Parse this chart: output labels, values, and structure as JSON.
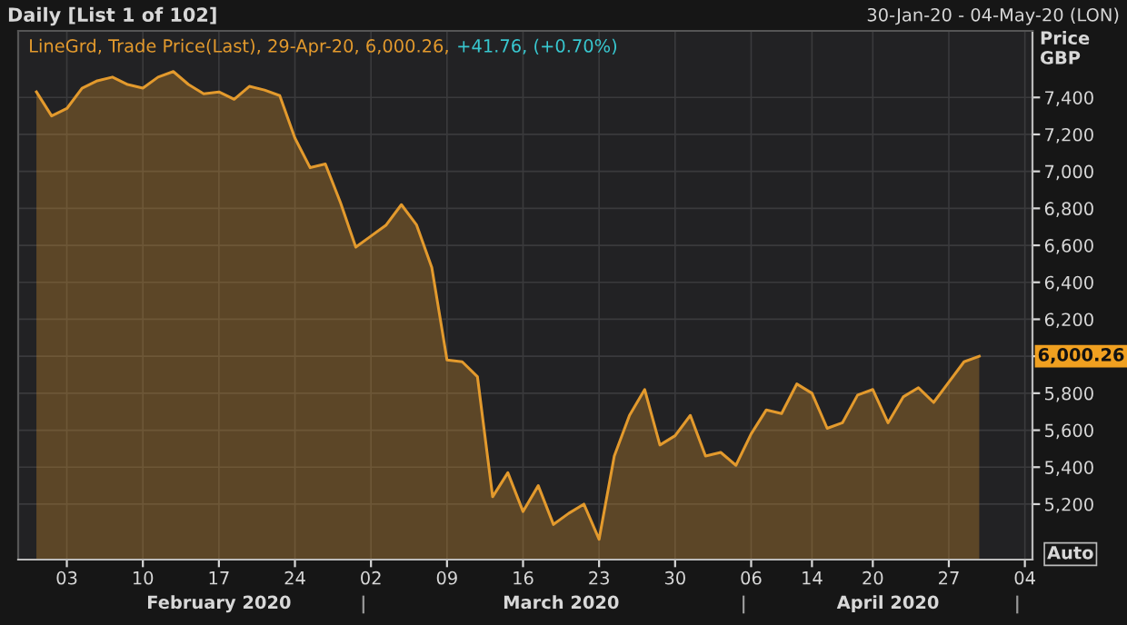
{
  "chart_data": {
    "type": "area",
    "title": "Daily [List 1 of 102]",
    "subtitle": "30-Jan-20 - 04-May-20 (LON)",
    "ylabel": "Price\nGBP",
    "categories": [
      null,
      null,
      "03",
      null,
      null,
      null,
      null,
      "10",
      null,
      null,
      null,
      null,
      "17",
      null,
      null,
      null,
      null,
      "24",
      null,
      null,
      null,
      null,
      "02",
      null,
      null,
      null,
      null,
      "09",
      null,
      null,
      null,
      null,
      "16",
      null,
      null,
      null,
      null,
      "23",
      null,
      null,
      null,
      null,
      "30",
      null,
      null,
      null,
      null,
      "06",
      null,
      null,
      null,
      "14",
      null,
      null,
      null,
      "20",
      null,
      null,
      null,
      null,
      "27",
      null,
      null,
      null,
      null,
      "04"
    ],
    "series": [
      {
        "name": "LineGrd, Trade Price(Last), 29-Apr-20, 6,000.26,",
        "color": "#e39a2d",
        "values": [
          7430,
          7300,
          7340,
          7450,
          7490,
          7510,
          7470,
          7450,
          7510,
          7540,
          7470,
          7420,
          7430,
          7390,
          7460,
          7440,
          7410,
          7180,
          7020,
          7040,
          6830,
          6590,
          6650,
          6710,
          6820,
          6710,
          6480,
          5980,
          5970,
          5890,
          5240,
          5370,
          5160,
          5300,
          5090,
          5150,
          5200,
          5010,
          5460,
          5680,
          5820,
          5520,
          5570,
          5680,
          5460,
          5480,
          5410,
          5580,
          5710,
          5690,
          5850,
          5800,
          5610,
          5640,
          5790,
          5820,
          5640,
          5780,
          5830,
          5750,
          5860,
          5970,
          6000.26,
          null,
          null,
          null
        ]
      }
    ],
    "ylim": [
      4900,
      7760
    ],
    "yticks": [
      {
        "value": 5200,
        "label": "5,200"
      },
      {
        "value": 5400,
        "label": "5,400"
      },
      {
        "value": 5600,
        "label": "5,600"
      },
      {
        "value": 5800,
        "label": "5,800"
      },
      {
        "value": 6000,
        "label": null
      },
      {
        "value": 6200,
        "label": "6,200"
      },
      {
        "value": 6400,
        "label": "6,400"
      },
      {
        "value": 6600,
        "label": "6,600"
      },
      {
        "value": 6800,
        "label": "6,800"
      },
      {
        "value": 7000,
        "label": "7,000"
      },
      {
        "value": 7200,
        "label": "7,200"
      },
      {
        "value": 7400,
        "label": "7,400"
      }
    ],
    "annotations": [
      "+41.76, (+0.70%)",
      "February 2020",
      "March 2020",
      "April 2020",
      "Auto",
      "6,000.26"
    ],
    "grid": true,
    "legend": "top left"
  }
}
